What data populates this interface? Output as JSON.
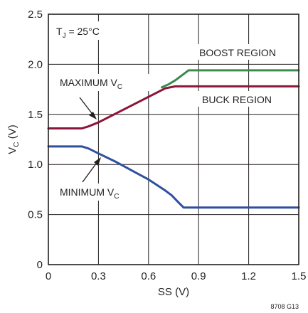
{
  "chart_data": {
    "type": "line",
    "xlabel": "SS (V)",
    "ylabel": "V",
    "ylabel_sub": "C",
    "ylabel_unit": " (V)",
    "xlim": [
      0,
      1.5
    ],
    "ylim": [
      0,
      2.5
    ],
    "x_ticks": [
      {
        "v": 0,
        "t": "0"
      },
      {
        "v": 0.3,
        "t": "0.3"
      },
      {
        "v": 0.6,
        "t": "0.6"
      },
      {
        "v": 0.9,
        "t": "0.9"
      },
      {
        "v": 1.2,
        "t": "1.2"
      },
      {
        "v": 1.5,
        "t": "1.5"
      }
    ],
    "y_ticks": [
      {
        "v": 0,
        "t": "0"
      },
      {
        "v": 0.5,
        "t": "0.5"
      },
      {
        "v": 1.0,
        "t": "1.0"
      },
      {
        "v": 1.5,
        "t": "1.5"
      },
      {
        "v": 2.0,
        "t": "2.0"
      },
      {
        "v": 2.5,
        "t": "2.5"
      }
    ],
    "grid": true,
    "series": [
      {
        "color": "#3a8a4e",
        "x": [
          0.68,
          0.72,
          0.76,
          0.8,
          0.84,
          1.5
        ],
        "y": [
          1.77,
          1.8,
          1.84,
          1.89,
          1.94,
          1.94
        ]
      },
      {
        "color": "#8b1538",
        "x": [
          0,
          0.2,
          0.24,
          0.3,
          0.7,
          0.76,
          1.5
        ],
        "y": [
          1.36,
          1.36,
          1.38,
          1.42,
          1.76,
          1.78,
          1.78
        ]
      },
      {
        "color": "#2e4fa0",
        "x": [
          0,
          0.2,
          0.24,
          0.3,
          0.4,
          0.5,
          0.6,
          0.7,
          0.74,
          0.78,
          0.81,
          1.5
        ],
        "y": [
          1.18,
          1.18,
          1.16,
          1.11,
          1.03,
          0.94,
          0.85,
          0.74,
          0.69,
          0.62,
          0.57,
          0.57
        ]
      }
    ],
    "annotations": {
      "tj": {
        "main": "T",
        "sub": "J",
        "rest": " = 25°C"
      },
      "boost": "BOOST REGION",
      "buck": "BUCK REGION",
      "maxvc": {
        "main": "MAXIMUM V",
        "sub": "C"
      },
      "minvc": {
        "main": "MINIMUM V",
        "sub": "C"
      }
    },
    "figure_id": "8708 G13"
  }
}
